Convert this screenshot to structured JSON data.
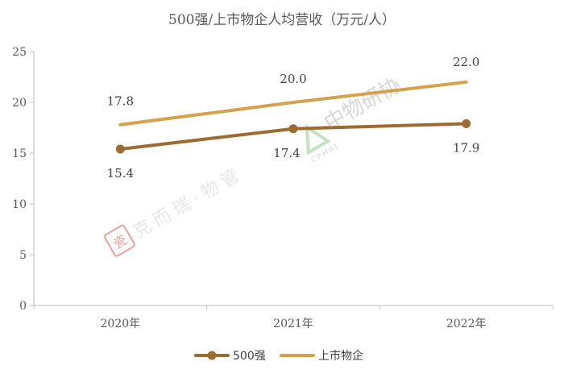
{
  "chart_data": {
    "type": "line",
    "title": "500强/上市物企人均营收（万元/人）",
    "categories": [
      "2020年",
      "2021年",
      "2022年"
    ],
    "ylim": [
      0,
      25
    ],
    "yticks": [
      "0",
      "5",
      "10",
      "15",
      "20",
      "25"
    ],
    "grid": false,
    "legend_position": "bottom",
    "series": [
      {
        "name": "500强",
        "values": [
          15.4,
          17.4,
          17.9
        ],
        "labels": [
          "15.4",
          "17.4",
          "17.9"
        ],
        "color": "#9C6B30",
        "markers": true
      },
      {
        "name": "上市物企",
        "values": [
          17.8,
          20.0,
          22.0
        ],
        "labels": [
          "17.8",
          "20.0",
          "22.0"
        ],
        "color": "#D4A24C",
        "markers": false
      }
    ]
  },
  "watermarks": {
    "left_text": "克而瑞·物管",
    "left_seal_icon": "seal-stamp-icon",
    "right_text": "中物研协",
    "right_sub": "CPMRI",
    "right_logo_icon": "cpmri-logo-icon"
  }
}
